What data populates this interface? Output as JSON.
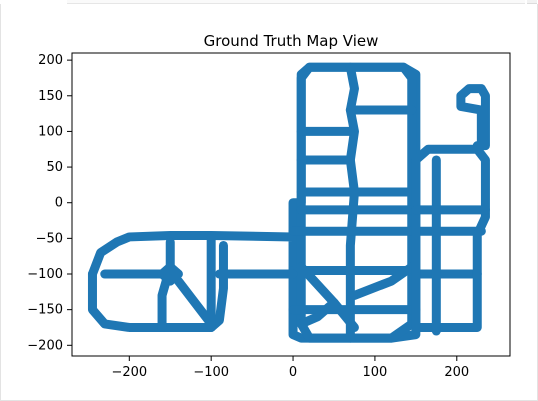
{
  "chart_data": {
    "type": "line",
    "title": "Ground Truth Map View",
    "xlabel": "",
    "ylabel": "",
    "xlim": [
      -270,
      265
    ],
    "ylim": [
      -215,
      210
    ],
    "x_ticks": [
      -200,
      -100,
      0,
      100,
      200
    ],
    "y_ticks": [
      200,
      150,
      100,
      50,
      0,
      -50,
      -100,
      -150,
      -200
    ],
    "x_tick_labels": [
      "−200",
      "−100",
      "0",
      "100",
      "200"
    ],
    "y_tick_labels": [
      "200",
      "150",
      "100",
      "50",
      "0",
      "−50",
      "−100",
      "−150",
      "−200"
    ],
    "grid": false,
    "legend": "none",
    "line_color": "#1f77b4",
    "series": [
      {
        "values": [
          {
            "path": [
              [
                -245,
                -100
              ],
              [
                -235,
                -70
              ],
              [
                -215,
                -55
              ],
              [
                -200,
                -48
              ],
              [
                -150,
                -46
              ],
              [
                -100,
                -46
              ],
              [
                0,
                -48
              ],
              [
                0,
                0
              ],
              [
                0,
                -150
              ],
              [
                0,
                -185
              ],
              [
                10,
                -190
              ],
              [
                120,
                -190
              ],
              [
                150,
                -185
              ],
              [
                150,
                0
              ],
              [
                150,
                180
              ],
              [
                135,
                190
              ],
              [
                20,
                190
              ],
              [
                10,
                180
              ],
              [
                10,
                0
              ],
              [
                0,
                0
              ]
            ]
          },
          {
            "path": [
              [
                10,
                175
              ],
              [
                10,
                -170
              ],
              [
                20,
                -190
              ],
              [
                120,
                -190
              ],
              [
                145,
                -170
              ],
              [
                145,
                175
              ],
              [
                135,
                190
              ],
              [
                20,
                190
              ],
              [
                10,
                175
              ]
            ]
          },
          {
            "path": [
              [
                70,
                190
              ],
              [
                75,
                160
              ],
              [
                70,
                130
              ],
              [
                75,
                100
              ],
              [
                70,
                60
              ],
              [
                75,
                15
              ],
              [
                70,
                -60
              ],
              [
                70,
                -190
              ]
            ]
          },
          {
            "path": [
              [
                10,
                -10
              ],
              [
                145,
                -10
              ]
            ]
          },
          {
            "path": [
              [
                10,
                15
              ],
              [
                145,
                15
              ]
            ]
          },
          {
            "path": [
              [
                10,
                60
              ],
              [
                70,
                60
              ]
            ]
          },
          {
            "path": [
              [
                10,
                100
              ],
              [
                70,
                100
              ]
            ]
          },
          {
            "path": [
              [
                70,
                130
              ],
              [
                145,
                130
              ]
            ]
          },
          {
            "path": [
              [
                0,
                -40
              ],
              [
                150,
                -40
              ]
            ]
          },
          {
            "path": [
              [
                0,
                -95
              ],
              [
                150,
                -95
              ]
            ]
          },
          {
            "path": [
              [
                0,
                -150
              ],
              [
                150,
                -150
              ]
            ]
          },
          {
            "path": [
              [
                10,
                -90
              ],
              [
                50,
                -140
              ],
              [
                75,
                -175
              ]
            ]
          },
          {
            "path": [
              [
                50,
                -140
              ],
              [
                30,
                -160
              ],
              [
                10,
                -170
              ]
            ]
          },
          {
            "path": [
              [
                75,
                -130
              ],
              [
                120,
                -110
              ],
              [
                145,
                -90
              ]
            ]
          },
          {
            "path": [
              [
                145,
                -40
              ],
              [
                230,
                -40
              ]
            ]
          },
          {
            "path": [
              [
                150,
                -100
              ],
              [
                225,
                -100
              ]
            ]
          },
          {
            "path": [
              [
                150,
                -175
              ],
              [
                225,
                -175
              ],
              [
                225,
                -45
              ],
              [
                235,
                -20
              ],
              [
                235,
                60
              ],
              [
                225,
                75
              ],
              [
                165,
                75
              ],
              [
                150,
                60
              ],
              [
                150,
                -175
              ]
            ]
          },
          {
            "path": [
              [
                175,
                -180
              ],
              [
                175,
                60
              ]
            ]
          },
          {
            "path": [
              [
                150,
                -10
              ],
              [
                235,
                -10
              ]
            ]
          },
          {
            "path": [
              [
                225,
                80
              ],
              [
                235,
                80
              ],
              [
                235,
                150
              ],
              [
                230,
                160
              ],
              [
                215,
                160
              ],
              [
                205,
                150
              ],
              [
                205,
                135
              ],
              [
                230,
                130
              ],
              [
                230,
                80
              ]
            ]
          },
          {
            "path": [
              [
                -245,
                -100
              ],
              [
                -245,
                -150
              ],
              [
                -230,
                -170
              ],
              [
                -200,
                -175
              ],
              [
                -100,
                -175
              ],
              [
                -90,
                -165
              ],
              [
                -85,
                -120
              ],
              [
                -85,
                -60
              ]
            ]
          },
          {
            "path": [
              [
                -230,
                -100
              ],
              [
                -150,
                -100
              ]
            ]
          },
          {
            "path": [
              [
                -90,
                -100
              ],
              [
                0,
                -100
              ]
            ]
          },
          {
            "path": [
              [
                -150,
                -55
              ],
              [
                -150,
                -90
              ],
              [
                -160,
                -130
              ],
              [
                -160,
                -175
              ]
            ]
          },
          {
            "path": [
              [
                -100,
                -50
              ],
              [
                -100,
                -175
              ]
            ]
          },
          {
            "path": [
              [
                -140,
                -110
              ],
              [
                -120,
                -140
              ],
              [
                -100,
                -170
              ]
            ]
          },
          {
            "path": [
              [
                -150,
                -110
              ],
              [
                -140,
                -100
              ],
              [
                -150,
                -90
              ],
              [
                -160,
                -100
              ],
              [
                -150,
                -110
              ]
            ]
          }
        ]
      }
    ]
  }
}
